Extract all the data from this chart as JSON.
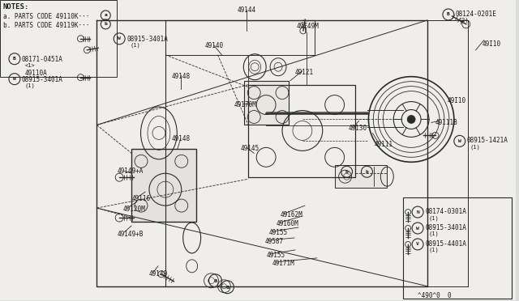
{
  "bg_color": "#dcdcdc",
  "diagram_bg": "#f0eeea",
  "line_color": "#2a2a2a",
  "text_color": "#1a1a1a",
  "figsize": [
    6.4,
    3.72
  ],
  "dpi": 100,
  "notes_lines": [
    "NOTES:",
    "  a. PARTS CODE 49110K···",
    "  b. PARTS CODE 49119K···"
  ],
  "footer": "^490^0  0"
}
